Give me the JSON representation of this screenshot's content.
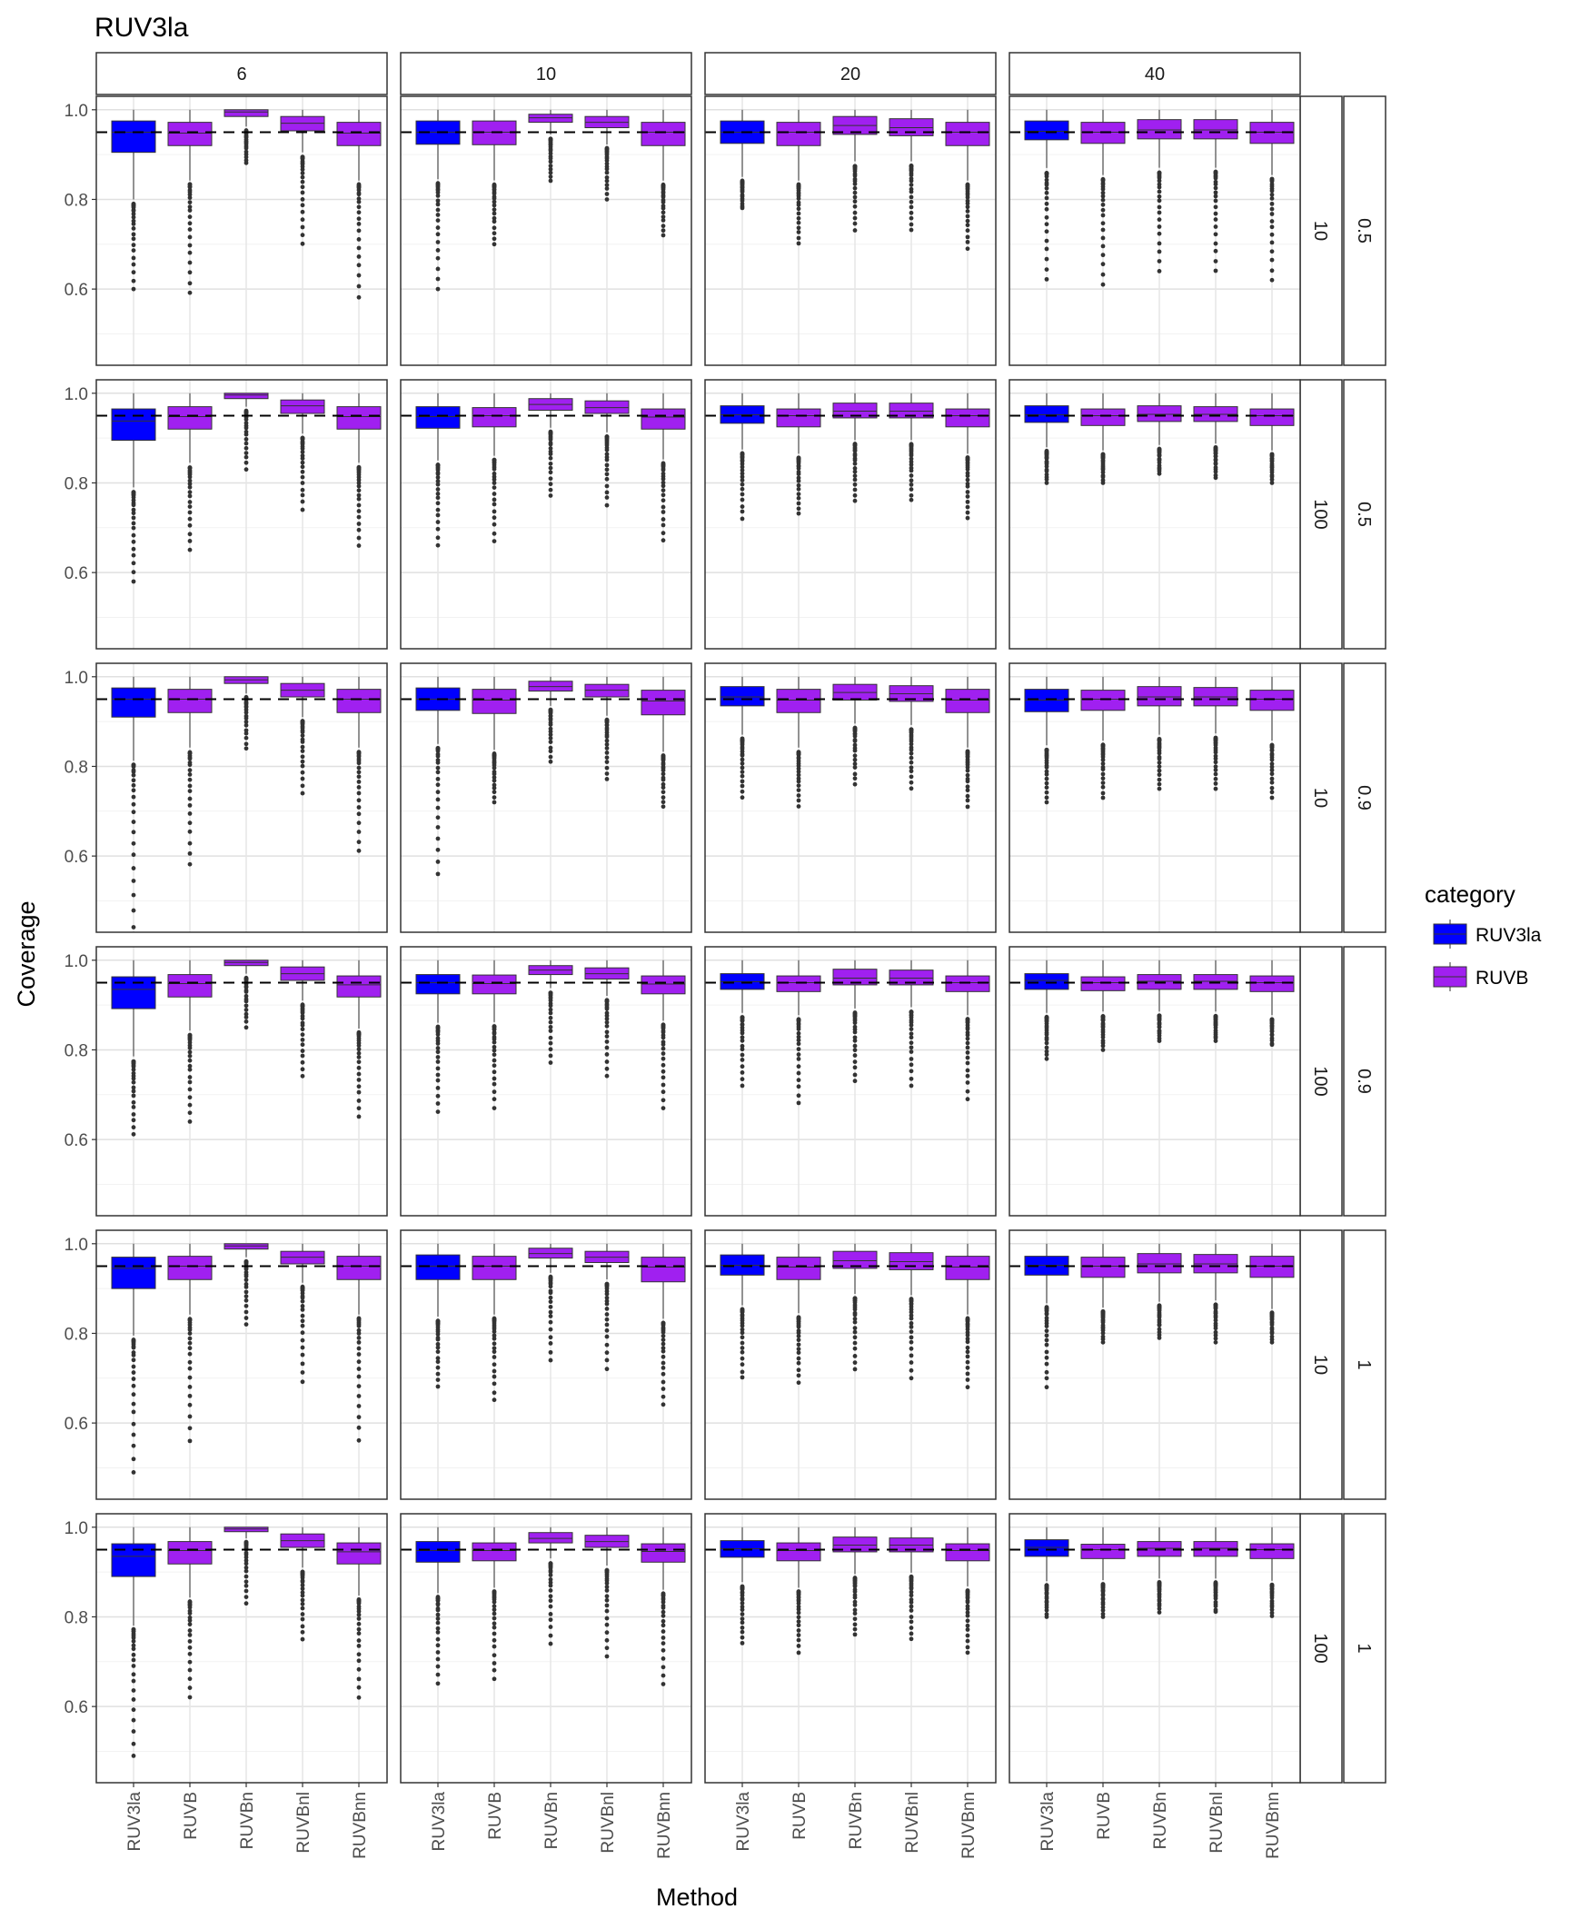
{
  "title": "RUV3la",
  "chart_data": {
    "type": "boxplot",
    "title": "RUV3la",
    "xlabel": "Method",
    "ylabel": "Coverage",
    "ylim": [
      0.43,
      1.03
    ],
    "yticks": [
      0.6,
      0.8,
      1.0
    ],
    "ytick_labels": [
      "0.6",
      "0.8",
      "1.0"
    ],
    "reference_line": 0.95,
    "grid": true,
    "categories": [
      "RUV3la",
      "RUVB",
      "RUVBn",
      "RUVBnl",
      "RUVBnn"
    ],
    "category_group": {
      "RUV3la": "RUV3la",
      "RUVB": "RUVB",
      "RUVBn": "RUVB",
      "RUVBnl": "RUVB",
      "RUVBnn": "RUVB"
    },
    "col_facet_labels": [
      "6",
      "10",
      "20",
      "40"
    ],
    "row_facet_labels": [
      [
        "10",
        "0.5"
      ],
      [
        "100",
        "0.5"
      ],
      [
        "10",
        "0.9"
      ],
      [
        "100",
        "0.9"
      ],
      [
        "10",
        "1"
      ],
      [
        "100",
        "1"
      ]
    ],
    "legend": {
      "title": "category",
      "position": "right",
      "entries": [
        {
          "label": "RUV3la",
          "color": "#0000ff"
        },
        {
          "label": "RUVB",
          "color": "#a020f0"
        }
      ]
    },
    "colors": {
      "RUV3la": "#0000ff",
      "RUVB": "#a020f0"
    },
    "panels": [
      [
        [
          [
            0.905,
            0.95,
            0.975,
            0.6
          ],
          [
            0.92,
            0.948,
            0.972,
            0.59
          ],
          [
            0.985,
            0.995,
            1.0,
            0.88
          ],
          [
            0.953,
            0.97,
            0.985,
            0.7
          ],
          [
            0.92,
            0.948,
            0.972,
            0.58
          ]
        ],
        [
          [
            0.923,
            0.95,
            0.975,
            0.6
          ],
          [
            0.922,
            0.95,
            0.975,
            0.7
          ],
          [
            0.972,
            0.982,
            0.99,
            0.84
          ],
          [
            0.96,
            0.972,
            0.985,
            0.8
          ],
          [
            0.92,
            0.95,
            0.972,
            0.72
          ]
        ],
        [
          [
            0.925,
            0.95,
            0.975,
            0.78
          ],
          [
            0.92,
            0.95,
            0.972,
            0.7
          ],
          [
            0.945,
            0.965,
            0.985,
            0.73
          ],
          [
            0.942,
            0.96,
            0.98,
            0.73
          ],
          [
            0.92,
            0.95,
            0.972,
            0.69
          ]
        ],
        [
          [
            0.933,
            0.952,
            0.975,
            0.62
          ],
          [
            0.925,
            0.95,
            0.972,
            0.61
          ],
          [
            0.935,
            0.955,
            0.978,
            0.64
          ],
          [
            0.935,
            0.955,
            0.978,
            0.64
          ],
          [
            0.925,
            0.95,
            0.972,
            0.62
          ]
        ]
      ],
      [
        [
          [
            0.895,
            0.938,
            0.965,
            0.58
          ],
          [
            0.92,
            0.948,
            0.97,
            0.65
          ],
          [
            0.988,
            0.996,
            1.0,
            0.83
          ],
          [
            0.955,
            0.972,
            0.985,
            0.74
          ],
          [
            0.92,
            0.948,
            0.97,
            0.66
          ]
        ],
        [
          [
            0.922,
            0.948,
            0.97,
            0.66
          ],
          [
            0.925,
            0.95,
            0.968,
            0.67
          ],
          [
            0.962,
            0.975,
            0.988,
            0.77
          ],
          [
            0.955,
            0.968,
            0.983,
            0.75
          ],
          [
            0.92,
            0.947,
            0.965,
            0.67
          ]
        ],
        [
          [
            0.933,
            0.952,
            0.972,
            0.72
          ],
          [
            0.925,
            0.95,
            0.965,
            0.73
          ],
          [
            0.945,
            0.96,
            0.978,
            0.76
          ],
          [
            0.945,
            0.96,
            0.978,
            0.76
          ],
          [
            0.925,
            0.95,
            0.965,
            0.72
          ]
        ],
        [
          [
            0.935,
            0.952,
            0.972,
            0.8
          ],
          [
            0.928,
            0.95,
            0.965,
            0.8
          ],
          [
            0.937,
            0.953,
            0.972,
            0.82
          ],
          [
            0.937,
            0.953,
            0.97,
            0.81
          ],
          [
            0.928,
            0.95,
            0.965,
            0.8
          ]
        ]
      ],
      [
        [
          [
            0.91,
            0.95,
            0.975,
            0.44
          ],
          [
            0.92,
            0.95,
            0.972,
            0.58
          ],
          [
            0.985,
            0.993,
            1.0,
            0.84
          ],
          [
            0.955,
            0.97,
            0.985,
            0.74
          ],
          [
            0.92,
            0.95,
            0.972,
            0.61
          ]
        ],
        [
          [
            0.925,
            0.95,
            0.975,
            0.56
          ],
          [
            0.918,
            0.948,
            0.972,
            0.72
          ],
          [
            0.968,
            0.978,
            0.99,
            0.81
          ],
          [
            0.955,
            0.97,
            0.983,
            0.77
          ],
          [
            0.915,
            0.946,
            0.97,
            0.71
          ]
        ],
        [
          [
            0.935,
            0.955,
            0.978,
            0.73
          ],
          [
            0.92,
            0.948,
            0.972,
            0.71
          ],
          [
            0.948,
            0.965,
            0.983,
            0.76
          ],
          [
            0.945,
            0.962,
            0.98,
            0.75
          ],
          [
            0.92,
            0.948,
            0.972,
            0.71
          ]
        ],
        [
          [
            0.922,
            0.948,
            0.972,
            0.72
          ],
          [
            0.925,
            0.95,
            0.97,
            0.73
          ],
          [
            0.935,
            0.955,
            0.978,
            0.75
          ],
          [
            0.935,
            0.955,
            0.976,
            0.75
          ],
          [
            0.925,
            0.95,
            0.97,
            0.73
          ]
        ]
      ],
      [
        [
          [
            0.892,
            0.935,
            0.963,
            0.61
          ],
          [
            0.918,
            0.948,
            0.968,
            0.64
          ],
          [
            0.988,
            0.995,
            1.0,
            0.85
          ],
          [
            0.955,
            0.97,
            0.985,
            0.74
          ],
          [
            0.918,
            0.945,
            0.965,
            0.65
          ]
        ],
        [
          [
            0.925,
            0.95,
            0.968,
            0.66
          ],
          [
            0.925,
            0.948,
            0.967,
            0.67
          ],
          [
            0.968,
            0.978,
            0.988,
            0.77
          ],
          [
            0.958,
            0.97,
            0.983,
            0.74
          ],
          [
            0.925,
            0.947,
            0.965,
            0.67
          ]
        ],
        [
          [
            0.935,
            0.952,
            0.97,
            0.72
          ],
          [
            0.93,
            0.95,
            0.965,
            0.68
          ],
          [
            0.945,
            0.96,
            0.98,
            0.73
          ],
          [
            0.945,
            0.96,
            0.978,
            0.72
          ],
          [
            0.93,
            0.95,
            0.965,
            0.69
          ]
        ],
        [
          [
            0.935,
            0.955,
            0.97,
            0.78
          ],
          [
            0.932,
            0.95,
            0.963,
            0.8
          ],
          [
            0.935,
            0.953,
            0.968,
            0.82
          ],
          [
            0.935,
            0.953,
            0.968,
            0.82
          ],
          [
            0.93,
            0.95,
            0.965,
            0.81
          ]
        ]
      ],
      [
        [
          [
            0.9,
            0.945,
            0.97,
            0.49
          ],
          [
            0.92,
            0.95,
            0.972,
            0.56
          ],
          [
            0.988,
            0.995,
            1.0,
            0.82
          ],
          [
            0.955,
            0.97,
            0.983,
            0.69
          ],
          [
            0.92,
            0.95,
            0.972,
            0.56
          ]
        ],
        [
          [
            0.92,
            0.95,
            0.975,
            0.68
          ],
          [
            0.92,
            0.95,
            0.972,
            0.65
          ],
          [
            0.968,
            0.978,
            0.99,
            0.74
          ],
          [
            0.958,
            0.97,
            0.983,
            0.72
          ],
          [
            0.915,
            0.948,
            0.97,
            0.64
          ]
        ],
        [
          [
            0.93,
            0.952,
            0.975,
            0.7
          ],
          [
            0.92,
            0.948,
            0.97,
            0.69
          ],
          [
            0.945,
            0.962,
            0.983,
            0.72
          ],
          [
            0.942,
            0.96,
            0.98,
            0.7
          ],
          [
            0.92,
            0.948,
            0.972,
            0.68
          ]
        ],
        [
          [
            0.93,
            0.952,
            0.972,
            0.68
          ],
          [
            0.925,
            0.95,
            0.97,
            0.78
          ],
          [
            0.935,
            0.955,
            0.978,
            0.79
          ],
          [
            0.935,
            0.955,
            0.976,
            0.78
          ],
          [
            0.925,
            0.95,
            0.972,
            0.78
          ]
        ]
      ],
      [
        [
          [
            0.89,
            0.935,
            0.963,
            0.49
          ],
          [
            0.918,
            0.948,
            0.968,
            0.62
          ],
          [
            0.99,
            0.996,
            1.0,
            0.83
          ],
          [
            0.955,
            0.97,
            0.985,
            0.75
          ],
          [
            0.918,
            0.945,
            0.965,
            0.62
          ]
        ],
        [
          [
            0.922,
            0.948,
            0.968,
            0.65
          ],
          [
            0.925,
            0.948,
            0.965,
            0.66
          ],
          [
            0.965,
            0.975,
            0.988,
            0.74
          ],
          [
            0.955,
            0.968,
            0.982,
            0.71
          ],
          [
            0.922,
            0.946,
            0.963,
            0.65
          ]
        ],
        [
          [
            0.933,
            0.952,
            0.97,
            0.74
          ],
          [
            0.925,
            0.948,
            0.965,
            0.72
          ],
          [
            0.945,
            0.96,
            0.978,
            0.76
          ],
          [
            0.945,
            0.96,
            0.976,
            0.75
          ],
          [
            0.925,
            0.948,
            0.963,
            0.72
          ]
        ],
        [
          [
            0.935,
            0.955,
            0.972,
            0.8
          ],
          [
            0.93,
            0.95,
            0.962,
            0.8
          ],
          [
            0.935,
            0.953,
            0.968,
            0.81
          ],
          [
            0.935,
            0.953,
            0.968,
            0.81
          ],
          [
            0.93,
            0.95,
            0.963,
            0.8
          ]
        ]
      ]
    ],
    "panel_value_order": [
      "q1",
      "median",
      "q3",
      "min"
    ]
  }
}
